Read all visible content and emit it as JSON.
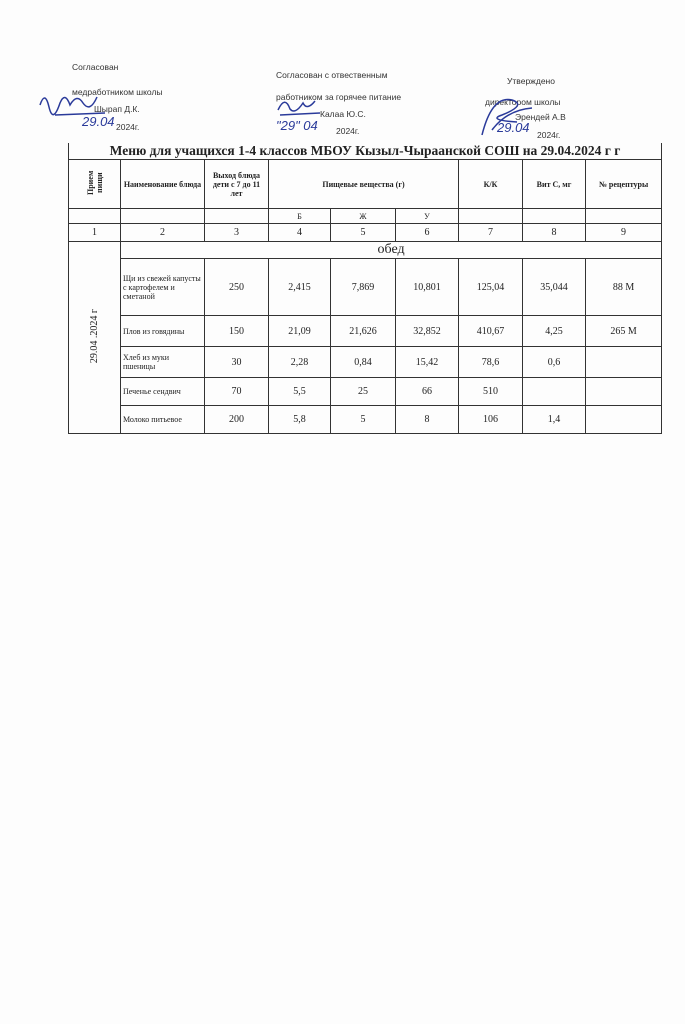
{
  "approvals": [
    {
      "line1": "Согласован",
      "line2": "медработником школы",
      "name": "Шырап Д.К.",
      "date": "29.04",
      "year": "2024г."
    },
    {
      "line1": "Согласован с отвественным",
      "line2": "работником за горячее питание",
      "name": "Калаа Ю.С.",
      "date": "\"29\" 04",
      "year": "2024г."
    },
    {
      "line1": "Утверждено",
      "line2": "директором школы",
      "name": "Эрендей А.В",
      "date": "29.04",
      "year": "2024г."
    }
  ],
  "title": "Меню для учащихся 1-4 классов МБОУ Кызыл-Чыраанской СОШ на 29.04.2024 г г",
  "headers": {
    "meal": "Прием пищи",
    "dish": "Наименование блюда",
    "yield": "Выход блюда дети с 7 до 11 лет",
    "nutrients": "Пищевые вещества (г)",
    "kk": "К/К",
    "vitc": "Вит С, мг",
    "recipe": "№ рецептуры",
    "b": "Б",
    "zh": "Ж",
    "u": "У"
  },
  "col_numbers": [
    "1",
    "2",
    "3",
    "4",
    "5",
    "6",
    "7",
    "8",
    "9"
  ],
  "section": "обед",
  "date_cell": "29.04 .2024 г",
  "rows": [
    {
      "name": "Щи из свежей капусты с картофелем и сметаной",
      "yield": "250",
      "b": "2,415",
      "zh": "7,869",
      "u": "10,801",
      "kk": "125,04",
      "vitc": "35,044",
      "recipe": "88 М"
    },
    {
      "name": "Плов из говядины",
      "yield": "150",
      "b": "21,09",
      "zh": "21,626",
      "u": "32,852",
      "kk": "410,67",
      "vitc": "4,25",
      "recipe": "265 М"
    },
    {
      "name": "Хлеб из муки пшеницы",
      "yield": "30",
      "b": "2,28",
      "zh": "0,84",
      "u": "15,42",
      "kk": "78,6",
      "vitc": "0,6",
      "recipe": ""
    },
    {
      "name": "Печенье сендвич",
      "yield": "70",
      "b": "5,5",
      "zh": "25",
      "u": "66",
      "kk": "510",
      "vitc": "",
      "recipe": ""
    },
    {
      "name": "Молоко питьевое",
      "yield": "200",
      "b": "5,8",
      "zh": "5",
      "u": "8",
      "kk": "106",
      "vitc": "1,4",
      "recipe": ""
    }
  ],
  "colors": {
    "ink": "#222222",
    "signature": "#2a3a9a"
  }
}
